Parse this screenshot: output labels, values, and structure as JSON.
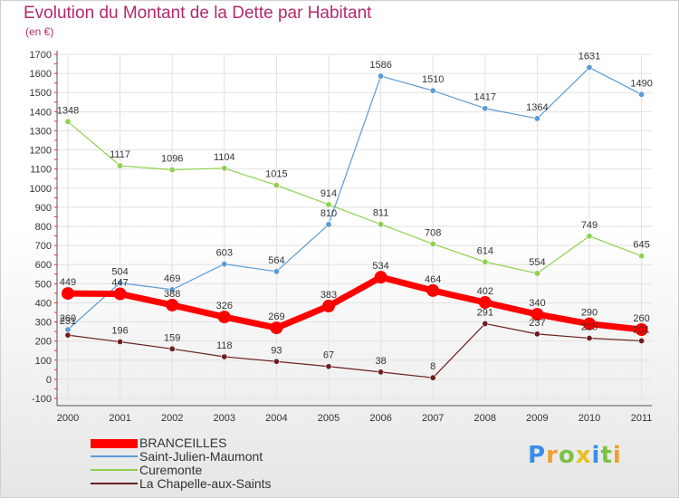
{
  "title": "Evolution du Montant de la Dette par Habitant",
  "subtitle": "(en €)",
  "logo": "Proxiti",
  "chart_data": {
    "type": "line",
    "x": [
      "2000",
      "2001",
      "2002",
      "2003",
      "2004",
      "2005",
      "2006",
      "2007",
      "2008",
      "2009",
      "2010",
      "2011"
    ],
    "ylim": [
      -100,
      1700
    ],
    "yticks": [
      -100,
      0,
      100,
      200,
      300,
      400,
      500,
      600,
      700,
      800,
      900,
      1000,
      1100,
      1200,
      1300,
      1400,
      1500,
      1600,
      1700
    ],
    "grid": true,
    "legend_position": "bottom-left",
    "series": [
      {
        "name": "BRANCEILLES",
        "color": "#ff0000",
        "values": [
          449,
          447,
          388,
          326,
          269,
          383,
          534,
          464,
          402,
          340,
          290,
          260
        ]
      },
      {
        "name": "Saint-Julien-Maumont",
        "color": "#5b9bd5",
        "values": [
          260,
          504,
          469,
          603,
          564,
          810,
          1586,
          1510,
          1417,
          1364,
          1631,
          1490
        ]
      },
      {
        "name": "Curemonte",
        "color": "#8fd14f",
        "values": [
          1348,
          1117,
          1096,
          1104,
          1015,
          914,
          811,
          708,
          614,
          554,
          749,
          645
        ]
      },
      {
        "name": "La Chapelle-aux-Saints",
        "color": "#6b1f1f",
        "values": [
          231,
          196,
          159,
          118,
          93,
          67,
          38,
          8,
          291,
          237,
          215,
          201
        ]
      }
    ]
  }
}
